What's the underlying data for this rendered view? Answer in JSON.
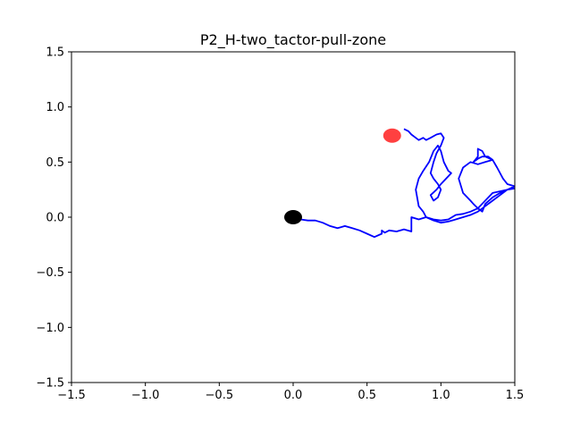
{
  "chart_data": {
    "type": "line",
    "title": "P2_H-two_tactor-pull-zone",
    "xlabel": "",
    "ylabel": "",
    "xlim": [
      -1.5,
      1.5
    ],
    "ylim": [
      -1.5,
      1.5
    ],
    "xticks": [
      -1.5,
      -1.0,
      -0.5,
      0.0,
      0.5,
      1.0,
      1.5
    ],
    "yticks": [
      -1.5,
      -1.0,
      -0.5,
      0.0,
      0.5,
      1.0,
      1.5
    ],
    "xtick_labels": [
      "−1.5",
      "−1.0",
      "−0.5",
      "0.0",
      "0.5",
      "1.0",
      "1.5"
    ],
    "ytick_labels": [
      "−1.5",
      "−1.0",
      "−0.5",
      "0.0",
      "0.5",
      "1.0",
      "1.5"
    ],
    "grid": false,
    "colors": {
      "trajectory": "#0000ff",
      "start": "#000000",
      "target": "#ff0000"
    },
    "series": [
      {
        "x": [
          0.0,
          0.05,
          0.1,
          0.15,
          0.2,
          0.25,
          0.3,
          0.35,
          0.4,
          0.45,
          0.5,
          0.55,
          0.6,
          0.6,
          0.62,
          0.65,
          0.7,
          0.75,
          0.8,
          0.8,
          0.85,
          0.9,
          0.95,
          1.0,
          1.05,
          1.1,
          1.15,
          1.2,
          1.25,
          1.3,
          1.35,
          1.4,
          1.45,
          1.5,
          1.45,
          1.42,
          1.38,
          1.35,
          1.3,
          1.28,
          1.25,
          1.25,
          1.22,
          1.25,
          1.28,
          1.32,
          1.35,
          1.3,
          1.25,
          1.2,
          1.15,
          1.12,
          1.15,
          1.2,
          1.22,
          1.25,
          1.28,
          1.3,
          1.35,
          1.4,
          1.45,
          1.5,
          1.45,
          1.35,
          1.3,
          1.25,
          1.2,
          1.15,
          1.1,
          1.05,
          1.0,
          0.95,
          0.9,
          0.88,
          0.85,
          0.83,
          0.85,
          0.88,
          0.92,
          0.95,
          0.98,
          1.0,
          1.02,
          1.05,
          1.07,
          1.0,
          0.97,
          0.93,
          0.95,
          0.98,
          1.0,
          0.98,
          0.95,
          0.93,
          0.95,
          0.97,
          1.0,
          1.02,
          1.0,
          0.97,
          0.93,
          0.9,
          0.88,
          0.85,
          0.83,
          0.8,
          0.78,
          0.75
        ],
        "y": [
          0.0,
          -0.02,
          -0.03,
          -0.03,
          -0.05,
          -0.08,
          -0.1,
          -0.08,
          -0.1,
          -0.12,
          -0.15,
          -0.18,
          -0.15,
          -0.12,
          -0.14,
          -0.12,
          -0.13,
          -0.11,
          -0.13,
          0.0,
          -0.02,
          0.0,
          -0.03,
          -0.05,
          -0.04,
          -0.02,
          0.0,
          0.02,
          0.05,
          0.1,
          0.15,
          0.2,
          0.25,
          0.28,
          0.3,
          0.35,
          0.45,
          0.52,
          0.55,
          0.6,
          0.62,
          0.55,
          0.5,
          0.53,
          0.55,
          0.55,
          0.52,
          0.5,
          0.48,
          0.5,
          0.45,
          0.35,
          0.22,
          0.15,
          0.12,
          0.08,
          0.05,
          0.12,
          0.18,
          0.22,
          0.25,
          0.26,
          0.25,
          0.22,
          0.15,
          0.08,
          0.05,
          0.03,
          0.02,
          -0.02,
          -0.03,
          -0.02,
          0.0,
          0.05,
          0.1,
          0.25,
          0.35,
          0.42,
          0.5,
          0.6,
          0.65,
          0.6,
          0.5,
          0.42,
          0.4,
          0.3,
          0.25,
          0.2,
          0.15,
          0.18,
          0.25,
          0.3,
          0.35,
          0.4,
          0.5,
          0.58,
          0.65,
          0.72,
          0.76,
          0.75,
          0.72,
          0.7,
          0.72,
          0.7,
          0.72,
          0.75,
          0.78,
          0.8
        ]
      }
    ],
    "markers": [
      {
        "x": 0.0,
        "y": 0.0,
        "color": "#000000"
      },
      {
        "x": 0.67,
        "y": 0.74,
        "color": "#ff0000"
      }
    ]
  }
}
